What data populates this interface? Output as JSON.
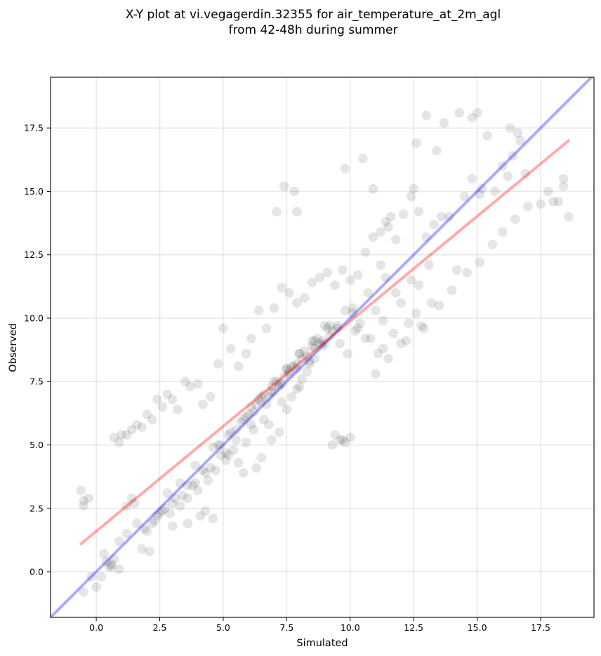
{
  "chart_data": {
    "type": "scatter",
    "title": [
      "X-Y plot at vi.vegagerdin.32355 for air_temperature_at_2m_agl",
      "from 42-48h during summer"
    ],
    "xlabel": "Simulated",
    "ylabel": "Observed",
    "xlim": [
      -1.8,
      19.6
    ],
    "ylim": [
      -1.8,
      19.5
    ],
    "xticks": [
      0.0,
      2.5,
      5.0,
      7.5,
      10.0,
      12.5,
      15.0,
      17.5
    ],
    "yticks": [
      0.0,
      2.5,
      5.0,
      7.5,
      10.0,
      12.5,
      15.0,
      17.5
    ],
    "grid": true,
    "colors": {
      "points": "#000000",
      "identity_line": "#0000ff",
      "fit_line": "#ff0000"
    },
    "identity_line": {
      "x": [
        -1.8,
        19.6
      ],
      "y": [
        -1.8,
        19.6
      ]
    },
    "fit_line": {
      "x": [
        -0.6,
        18.6
      ],
      "y": [
        1.1,
        17.0
      ]
    },
    "points": {
      "x": [
        -0.6,
        -0.5,
        -0.5,
        -0.3,
        -0.5,
        -0.2,
        0.0,
        0.2,
        0.4,
        0.6,
        0.7,
        0.9,
        1.0,
        1.2,
        1.4,
        1.6,
        1.8,
        2.0,
        2.2,
        2.4,
        2.6,
        2.8,
        3.0,
        3.2,
        3.5,
        3.7,
        4.0,
        4.2,
        4.5,
        4.8,
        5.0,
        5.3,
        5.6,
        5.9,
        6.1,
        6.4,
        6.7,
        7.0,
        7.3,
        7.6,
        7.9,
        8.2,
        8.5,
        8.8,
        9.1,
        9.4,
        9.7,
        10.0,
        10.3,
        10.6,
        10.9,
        11.2,
        11.5,
        11.8,
        12.1,
        12.4,
        12.7,
        13.0,
        13.3,
        13.6,
        13.9,
        14.2,
        14.5,
        14.8,
        15.1,
        15.4,
        15.7,
        16.0,
        16.3,
        16.6,
        16.9,
        17.5,
        18.2,
        18.4,
        18.6,
        12.6,
        13.0,
        14.3,
        14.8,
        15.0,
        16.4,
        16.7,
        12.5,
        13.4,
        13.7,
        15.2,
        16.2,
        7.4,
        7.8,
        7.1,
        7.9,
        9.8,
        10.5,
        10.9,
        11.2,
        11.6,
        11.4,
        9.6,
        9.3,
        10.0,
        9.8,
        9.4,
        9.7,
        4.1,
        4.3,
        4.6,
        3.0,
        3.6,
        2.0,
        1.8,
        2.1,
        0.6,
        0.5,
        0.7,
        0.9,
        1.4,
        1.2,
        4.9,
        5.2,
        5.6,
        5.8,
        6.3,
        6.5,
        6.9,
        7.2,
        6.8,
        7.5,
        7.7,
        8.0,
        8.3,
        8.6,
        8.9,
        9.2,
        9.5,
        9.0,
        8.4,
        8.1,
        7.9,
        7.3,
        6.6,
        6.2,
        5.9,
        5.4,
        5.1,
        4.7,
        4.4,
        4.0,
        3.6,
        3.3,
        2.9,
        2.6,
        2.3,
        10.2,
        10.4,
        10.8,
        11.1,
        11.3,
        11.7,
        12.0,
        12.3,
        12.6,
        12.9,
        13.2,
        11.0,
        11.5,
        12.2,
        12.8,
        13.5,
        14.0,
        14.6,
        15.1,
        15.6,
        16.0,
        16.5,
        17.0,
        17.8,
        18.0,
        18.4,
        6.0,
        6.5,
        7.0,
        7.5,
        8.0,
        8.5,
        9.0,
        7.2,
        7.7,
        8.2,
        8.7,
        6.7,
        7.4,
        8.4,
        7.0,
        7.6,
        8.1,
        6.4,
        6.9,
        7.8,
        8.8,
        9.3,
        5.7,
        6.1,
        6.6,
        7.1,
        7.5,
        8.0,
        8.6,
        9.1,
        5.5,
        6.2,
        6.8,
        7.3,
        7.9,
        8.5,
        9.2,
        9.8,
        4.8,
        5.3,
        5.9,
        6.5,
        7.2,
        7.9,
        8.6,
        10.1,
        10.7,
        11.4,
        9.6,
        10.3,
        11.0,
        11.8,
        12.4,
        13.1,
        9.9,
        10.6,
        11.3,
        12.0,
        12.7,
        3.8,
        4.3,
        4.9,
        5.5,
        6.1,
        3.4,
        3.9,
        4.5,
        5.1,
        2.7,
        3.1,
        3.6,
        4.2,
        2.2,
        2.5,
        3.0,
        1.9,
        2.4,
        1.6,
        1.2,
        0.9,
        0.3,
        1.5,
        2.8,
        3.3,
        3.9,
        4.6,
        5.2,
        5.8,
        6.3,
        6.9,
        7.6,
        8.3,
        8.9,
        9.5,
        10.1
      ],
      "y": [
        3.2,
        2.8,
        2.6,
        2.9,
        -0.8,
        -0.2,
        -0.6,
        -0.2,
        0.4,
        0.2,
        5.3,
        5.1,
        5.4,
        5.4,
        5.6,
        5.8,
        5.7,
        6.2,
        6.0,
        6.8,
        6.5,
        7.0,
        6.8,
        6.4,
        7.5,
        7.3,
        7.4,
        6.6,
        6.9,
        8.2,
        9.6,
        8.8,
        8.1,
        8.6,
        9.2,
        10.3,
        9.6,
        10.4,
        11.2,
        11.0,
        10.6,
        10.8,
        11.4,
        11.6,
        11.8,
        11.3,
        11.9,
        11.5,
        11.7,
        12.6,
        13.2,
        12.1,
        13.6,
        13.1,
        14.1,
        14.8,
        14.2,
        13.2,
        13.7,
        14.0,
        14.0,
        11.9,
        14.8,
        15.5,
        14.9,
        17.2,
        15.0,
        16.0,
        17.5,
        17.3,
        15.7,
        14.5,
        14.6,
        15.5,
        14.0,
        16.9,
        18.0,
        18.1,
        17.9,
        18.1,
        16.4,
        17.0,
        15.1,
        16.6,
        17.7,
        15.1,
        15.6,
        15.2,
        15.0,
        14.2,
        14.2,
        15.9,
        16.3,
        15.1,
        13.4,
        14.0,
        13.8,
        5.2,
        5.0,
        5.3,
        5.1,
        5.4,
        5.2,
        2.2,
        2.4,
        2.1,
        1.8,
        1.9,
        1.6,
        0.9,
        0.8,
        0.3,
        0.2,
        0.5,
        0.1,
        2.9,
        2.6,
        5.0,
        4.6,
        4.3,
        3.9,
        4.1,
        4.5,
        5.2,
        5.5,
        5.8,
        6.4,
        6.9,
        7.3,
        7.9,
        8.4,
        8.9,
        9.3,
        9.7,
        9.0,
        8.2,
        7.6,
        7.2,
        6.7,
        6.0,
        5.6,
        5.1,
        4.8,
        4.4,
        4.0,
        3.6,
        3.2,
        2.9,
        2.6,
        2.3,
        2.4,
        2.0,
        9.5,
        9.8,
        9.2,
        8.6,
        8.8,
        9.4,
        9.0,
        9.8,
        10.2,
        9.6,
        10.6,
        7.8,
        8.4,
        9.1,
        9.7,
        10.5,
        11.1,
        11.8,
        12.2,
        12.9,
        13.4,
        13.9,
        14.4,
        15.0,
        14.6,
        15.2,
        6.2,
        6.9,
        7.5,
        8.0,
        8.6,
        9.1,
        9.7,
        7.4,
        8.1,
        8.7,
        9.2,
        6.6,
        7.7,
        8.3,
        7.1,
        7.9,
        8.4,
        6.8,
        7.3,
        8.1,
        9.0,
        9.5,
        5.9,
        6.5,
        7.0,
        7.5,
        8.0,
        8.6,
        9.1,
        9.6,
        5.6,
        6.3,
        6.9,
        7.4,
        8.2,
        8.9,
        9.7,
        10.3,
        5.0,
        5.5,
        6.1,
        6.7,
        7.3,
        8.0,
        8.8,
        10.4,
        11.0,
        11.6,
        9.0,
        9.6,
        10.3,
        11.0,
        11.5,
        12.1,
        8.6,
        9.2,
        9.9,
        10.6,
        11.3,
        3.4,
        3.9,
        4.6,
        5.2,
        5.8,
        3.0,
        3.5,
        4.1,
        4.7,
        2.5,
        2.9,
        3.4,
        4.0,
        1.9,
        2.3,
        2.7,
        1.7,
        2.2,
        1.9,
        1.5,
        1.2,
        0.7,
        2.7,
        3.1,
        3.5,
        4.2,
        4.9,
        5.4,
        6.0,
        6.6,
        7.1,
        7.8,
        8.5,
        9.1,
        9.6,
        10.2
      ]
    }
  }
}
